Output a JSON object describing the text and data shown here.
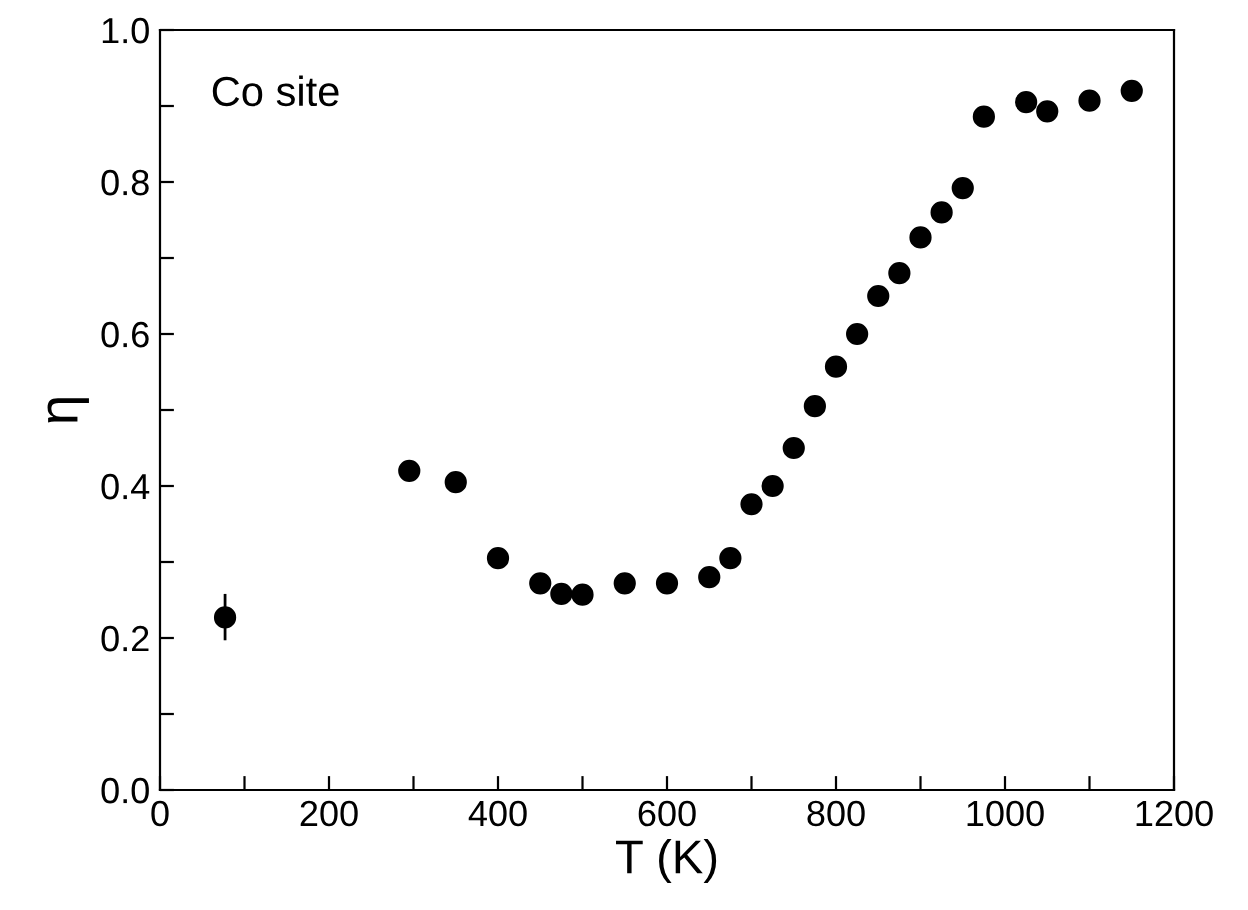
{
  "chart_data": {
    "type": "scatter",
    "xlabel": "T (K)",
    "ylabel": "η",
    "annotations": [
      "Co site"
    ],
    "x": [
      77,
      295,
      350,
      400,
      450,
      475,
      500,
      550,
      600,
      650,
      675,
      700,
      725,
      750,
      775,
      800,
      825,
      850,
      875,
      900,
      925,
      950,
      975,
      1025,
      1050,
      1100,
      1150
    ],
    "series": [
      {
        "color": "#000000",
        "values": [
          0.227,
          0.42,
          0.405,
          0.305,
          0.272,
          0.258,
          0.257,
          0.272,
          0.272,
          0.28,
          0.305,
          0.376,
          0.4,
          0.45,
          0.505,
          0.557,
          0.6,
          0.65,
          0.68,
          0.727,
          0.76,
          0.792,
          0.886,
          0.905,
          0.893,
          0.907,
          0.92
        ],
        "errors": [
          [
            0.197,
            0.258
          ],
          null,
          null,
          null,
          null,
          null,
          null,
          null,
          null,
          null,
          null,
          null,
          null,
          null,
          null,
          null,
          null,
          null,
          null,
          null,
          null,
          null,
          null,
          null,
          null,
          null,
          null
        ]
      }
    ],
    "marker": "circle",
    "xlim": [
      0,
      1200
    ],
    "ylim": [
      0.0,
      1.0
    ],
    "xticks": [
      0,
      {
        "value": 100,
        "label": null
      },
      200,
      {
        "value": 300,
        "label": null
      },
      400,
      {
        "value": 500,
        "label": null
      },
      600,
      {
        "value": 700,
        "label": null
      },
      800,
      {
        "value": 900,
        "label": null
      },
      1000,
      {
        "value": 1100,
        "label": null
      },
      1200
    ],
    "yticks": [
      {
        "value": 0.0,
        "label": "0.0"
      },
      {
        "value": 0.1,
        "label": null
      },
      0.2,
      {
        "value": 0.3,
        "label": null
      },
      0.4,
      {
        "value": 0.5,
        "label": null
      },
      0.6,
      {
        "value": 0.7,
        "label": null
      },
      0.8,
      {
        "value": 0.9,
        "label": null
      },
      {
        "value": 1.0,
        "label": "1.0"
      }
    ],
    "grid": false
  }
}
